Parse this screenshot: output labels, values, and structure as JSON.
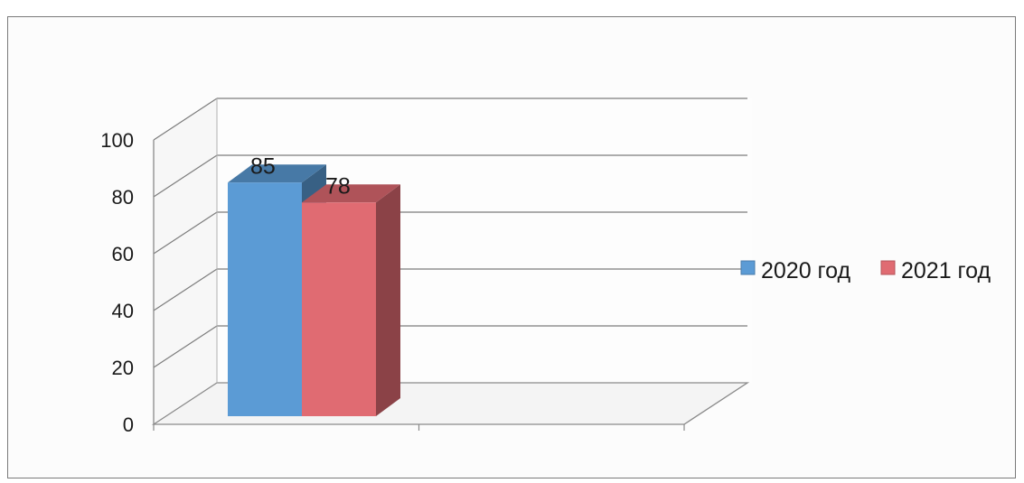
{
  "chart_data": {
    "type": "bar",
    "title": "",
    "xlabel": "",
    "ylabel": "",
    "categories": [
      ""
    ],
    "series": [
      {
        "name": "2020 год",
        "values": [
          85
        ],
        "color": "#5b9bd5"
      },
      {
        "name": "2021 год",
        "values": [
          78
        ],
        "color": "#e06b72"
      }
    ],
    "ylim": [
      0,
      100
    ],
    "yticks": [
      0,
      20,
      40,
      60,
      80,
      100
    ],
    "data_labels": [
      "85",
      "78"
    ],
    "grid": true,
    "legend_position": "right",
    "style": "3d-clustered-column"
  }
}
